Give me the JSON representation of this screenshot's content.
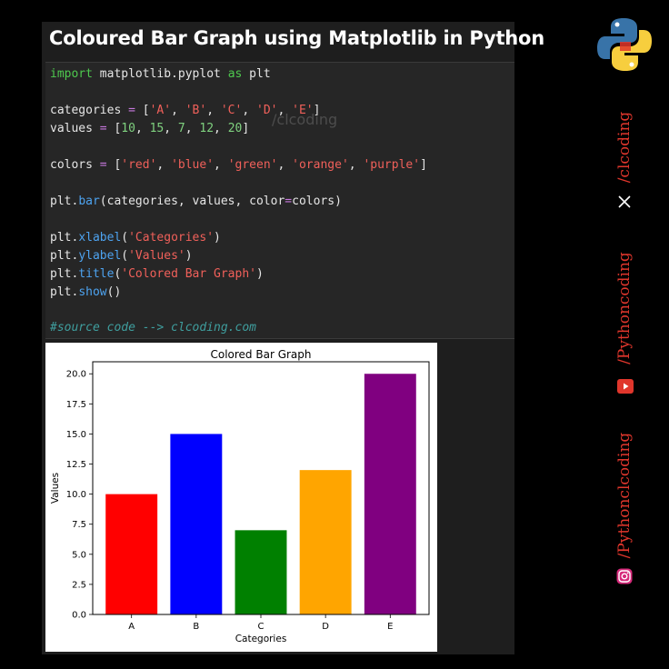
{
  "post_title": "Coloured Bar Graph using Matplotlib in Python",
  "watermark": "/clcoding",
  "code": {
    "l1_kw1": "import",
    "l1_mod": " matplotlib.pyplot ",
    "l1_kw2": "as",
    "l1_alias": " plt",
    "l2_var": "categories ",
    "l2_eq": "=",
    "l2_open": " [",
    "l2_a": "'A'",
    "l2_b": "'B'",
    "l2_c": "'C'",
    "l2_d": "'D'",
    "l2_e": "'E'",
    "l2_close": "]",
    "l3_var": "values ",
    "l3_eq": "=",
    "l3_open": " [",
    "l3_n1": "10",
    "l3_n2": "15",
    "l3_n3": "7",
    "l3_n4": "12",
    "l3_n5": "20",
    "l3_close": "]",
    "l4_var": "colors ",
    "l4_eq": "=",
    "l4_open": " [",
    "l4_c1": "'red'",
    "l4_c2": "'blue'",
    "l4_c3": "'green'",
    "l4_c4": "'orange'",
    "l4_c5": "'purple'",
    "l4_close": "]",
    "l5_obj": "plt.",
    "l5_fn": "bar",
    "l5_args": "(categories, values, color",
    "l5_eq": "=",
    "l5_end": "colors)",
    "l6_obj": "plt.",
    "l6_fn": "xlabel",
    "l6_str": "'Categories'",
    "l7_obj": "plt.",
    "l7_fn": "ylabel",
    "l7_str": "'Values'",
    "l8_obj": "plt.",
    "l8_fn": "title",
    "l8_str": "'Colored Bar Graph'",
    "l9_obj": "plt.",
    "l9_fn": "show",
    "l9_end": "()",
    "comment": "#source code --> clcoding.com",
    "comma": ", ",
    "paren_open": "(",
    "paren_close": ")"
  },
  "sidebar": {
    "handle_x": "/clcoding",
    "handle_youtube": "/Pythoncoding",
    "handle_instagram": "/Pythonclcoding",
    "icons": [
      "python-logo-icon",
      "x-logo-icon",
      "youtube-icon",
      "instagram-icon"
    ]
  },
  "chart_data": {
    "type": "bar",
    "title": "Colored Bar Graph",
    "xlabel": "Categories",
    "ylabel": "Values",
    "categories": [
      "A",
      "B",
      "C",
      "D",
      "E"
    ],
    "values": [
      10,
      15,
      7,
      12,
      20
    ],
    "colors": [
      "#ff0000",
      "#0000ff",
      "#008000",
      "#ffa500",
      "#800080"
    ],
    "ylim": [
      0,
      21
    ],
    "yticks": [
      "0.0",
      "2.5",
      "5.0",
      "7.5",
      "10.0",
      "12.5",
      "15.0",
      "17.5",
      "20.0"
    ],
    "ytick_values": [
      0,
      2.5,
      5,
      7.5,
      10,
      12.5,
      15,
      17.5,
      20
    ],
    "grid": false
  }
}
